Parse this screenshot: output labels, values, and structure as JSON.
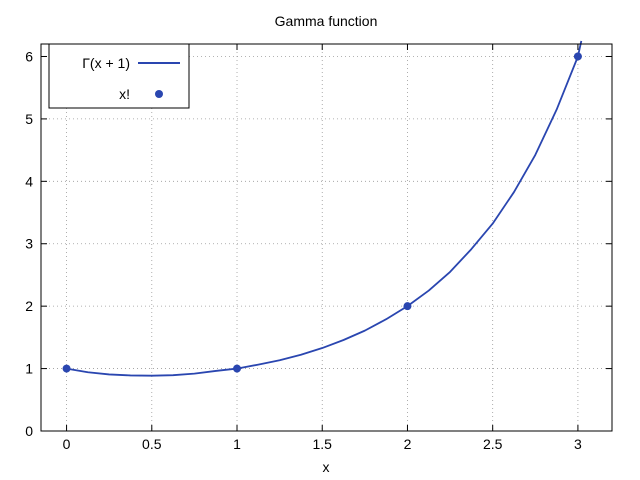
{
  "chart_data": {
    "type": "line",
    "title": "Gamma function",
    "xlabel": "x",
    "ylabel": "",
    "xlim": [
      -0.15,
      3.2
    ],
    "ylim": [
      0,
      6.2
    ],
    "xticks": [
      0,
      0.5,
      1,
      1.5,
      2,
      2.5,
      3
    ],
    "xtick_labels": [
      "0",
      "0.5",
      "1",
      "1.5",
      "2",
      "2.5",
      "3"
    ],
    "yticks": [
      0,
      1,
      2,
      3,
      4,
      5,
      6
    ],
    "ytick_labels": [
      "0",
      "1",
      "2",
      "3",
      "4",
      "5",
      "6"
    ],
    "grid": true,
    "legend_position": "top-left",
    "series": [
      {
        "name": "Γ(x + 1)",
        "kind": "line",
        "color": "#2a46b0",
        "x": [
          0,
          0.125,
          0.25,
          0.375,
          0.5,
          0.625,
          0.75,
          0.875,
          1,
          1.125,
          1.25,
          1.375,
          1.5,
          1.625,
          1.75,
          1.875,
          2,
          2.125,
          2.25,
          2.375,
          2.5,
          2.625,
          2.75,
          2.875,
          3,
          3.02
        ],
        "y": [
          1,
          0.941,
          0.906,
          0.89,
          0.886,
          0.894,
          0.919,
          0.962,
          1,
          1.064,
          1.133,
          1.222,
          1.329,
          1.458,
          1.608,
          1.791,
          2,
          2.25,
          2.549,
          2.914,
          3.323,
          3.828,
          4.423,
          5.148,
          6,
          6.25
        ]
      },
      {
        "name": "x!",
        "kind": "points",
        "color": "#2a46b0",
        "x": [
          0,
          1,
          2,
          3
        ],
        "y": [
          1,
          1,
          2,
          6
        ]
      }
    ]
  }
}
